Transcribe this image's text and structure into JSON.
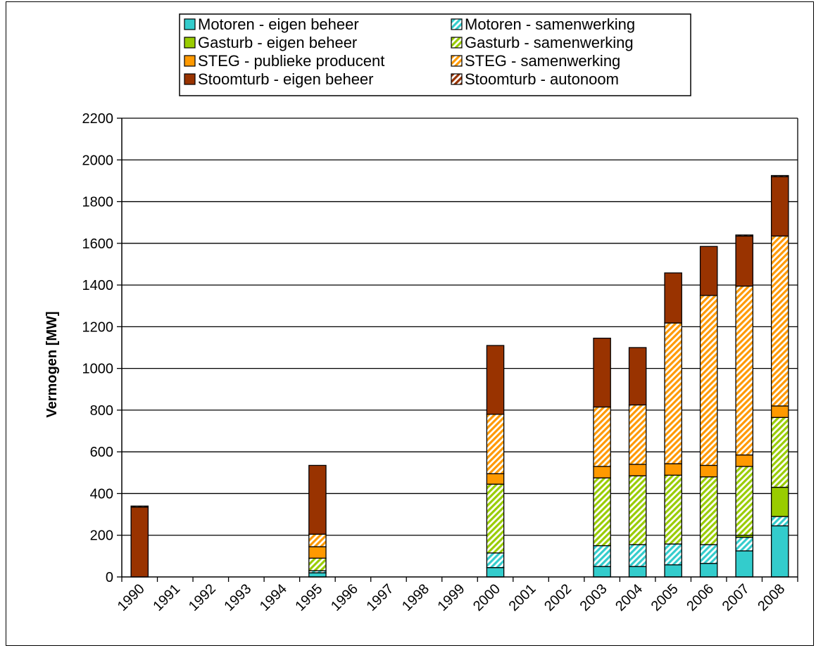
{
  "chart_data": {
    "type": "bar",
    "stacked": true,
    "ylabel": "Vermogen [MW]",
    "xlabel": "",
    "ylim": [
      0,
      2200
    ],
    "yticks": [
      0,
      200,
      400,
      600,
      800,
      1000,
      1200,
      1400,
      1600,
      1800,
      2000,
      2200
    ],
    "grid": true,
    "legend_position": "top",
    "categories": [
      "1990",
      "1991",
      "1992",
      "1993",
      "1994",
      "1995",
      "1996",
      "1997",
      "1998",
      "1999",
      "2000",
      "2001",
      "2002",
      "2003",
      "2004",
      "2005",
      "2006",
      "2007",
      "2008"
    ],
    "series": [
      {
        "name": "Motoren - eigen beheer",
        "color": "#33CCCC",
        "pattern": "solid",
        "values": [
          0,
          0,
          0,
          0,
          0,
          20,
          0,
          0,
          0,
          0,
          45,
          0,
          0,
          50,
          50,
          58,
          65,
          125,
          245
        ]
      },
      {
        "name": "Motoren - samenwerking",
        "color": "#33CCCC",
        "pattern": "hatch",
        "values": [
          0,
          0,
          0,
          0,
          0,
          10,
          0,
          0,
          0,
          0,
          70,
          0,
          0,
          100,
          105,
          100,
          90,
          65,
          45
        ]
      },
      {
        "name": "Gasturb - eigen beheer",
        "color": "#99CC00",
        "pattern": "solid",
        "values": [
          0,
          0,
          0,
          0,
          0,
          0,
          0,
          0,
          0,
          0,
          0,
          0,
          0,
          0,
          0,
          0,
          0,
          10,
          140
        ]
      },
      {
        "name": "Gasturb - samenwerking",
        "color": "#99CC00",
        "pattern": "hatch",
        "values": [
          0,
          0,
          0,
          0,
          0,
          60,
          0,
          0,
          0,
          0,
          330,
          0,
          0,
          325,
          330,
          330,
          325,
          330,
          335
        ]
      },
      {
        "name": "STEG - publieke producent",
        "color": "#FF9900",
        "pattern": "solid",
        "values": [
          0,
          0,
          0,
          0,
          0,
          55,
          0,
          0,
          0,
          0,
          50,
          0,
          0,
          55,
          55,
          55,
          55,
          55,
          55
        ]
      },
      {
        "name": "STEG - samenwerking",
        "color": "#FF9900",
        "pattern": "hatch",
        "values": [
          0,
          0,
          0,
          0,
          0,
          60,
          0,
          0,
          0,
          0,
          285,
          0,
          0,
          285,
          285,
          675,
          815,
          810,
          815
        ]
      },
      {
        "name": "Stoomturb - eigen beheer",
        "color": "#993300",
        "pattern": "solid",
        "values": [
          335,
          0,
          0,
          0,
          0,
          330,
          0,
          0,
          0,
          0,
          330,
          0,
          0,
          330,
          275,
          240,
          235,
          240,
          285
        ]
      },
      {
        "name": "Stoomturb - autonoom",
        "color": "#993300",
        "pattern": "hatch",
        "values": [
          5,
          0,
          0,
          0,
          0,
          0,
          0,
          0,
          0,
          0,
          0,
          0,
          0,
          0,
          0,
          0,
          0,
          5,
          5
        ]
      }
    ]
  }
}
